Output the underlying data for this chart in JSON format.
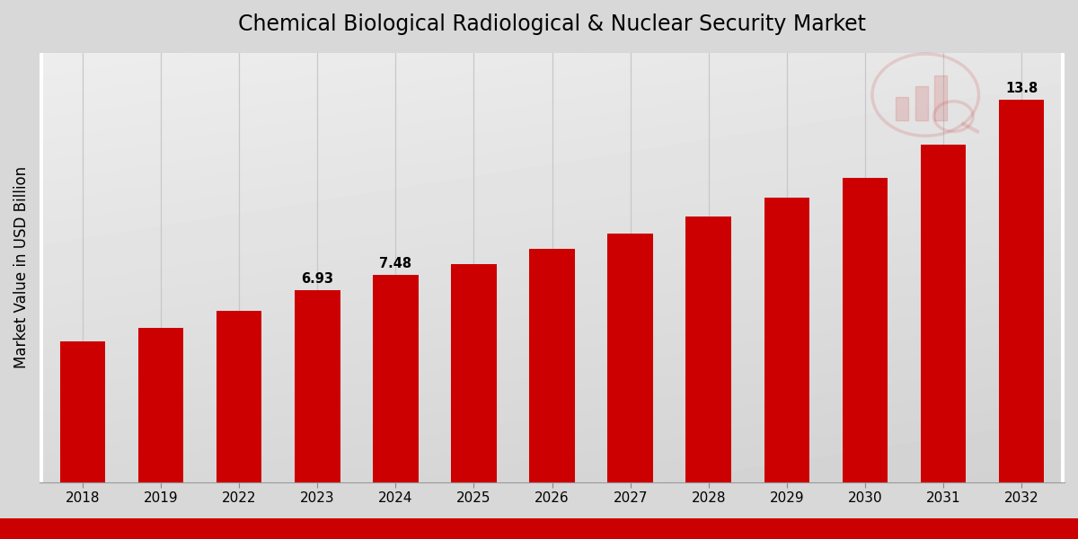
{
  "categories": [
    "2018",
    "2019",
    "2022",
    "2023",
    "2024",
    "2025",
    "2026",
    "2027",
    "2028",
    "2029",
    "2030",
    "2031",
    "2032"
  ],
  "values": [
    5.1,
    5.58,
    6.2,
    6.93,
    7.48,
    7.88,
    8.42,
    8.98,
    9.58,
    10.28,
    10.98,
    12.2,
    13.8
  ],
  "bar_color": "#cc0000",
  "labeled_indices": [
    3,
    4,
    12
  ],
  "labels": [
    "6.93",
    "7.48",
    "13.8"
  ],
  "title": "Chemical Biological Radiological & Nuclear Security Market",
  "ylabel": "Market Value in USD Billion",
  "ylim": [
    0,
    15.5
  ],
  "title_fontsize": 17,
  "label_fontsize": 10.5,
  "tick_fontsize": 11,
  "ylabel_fontsize": 12,
  "grid_color": "#c8c8c8",
  "footer_color": "#cc0000",
  "bar_width": 0.58
}
